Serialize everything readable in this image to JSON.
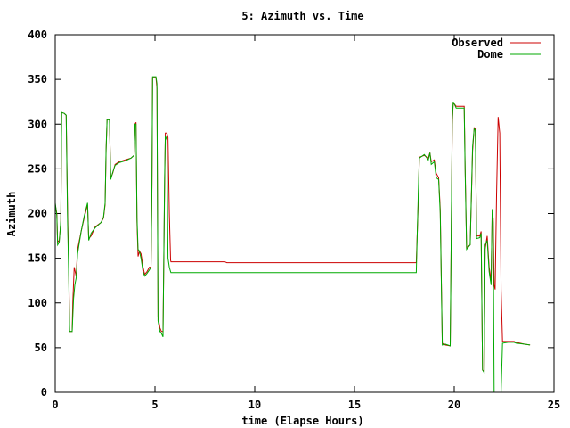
{
  "chart_data": {
    "type": "line",
    "title": "5: Azimuth vs. Time",
    "xlabel": "time (Elapse Hours)",
    "ylabel": "Azimuth",
    "xlim": [
      0,
      25
    ],
    "ylim": [
      0,
      400
    ],
    "xticks": [
      0,
      5,
      10,
      15,
      20,
      25
    ],
    "yticks": [
      0,
      50,
      100,
      150,
      200,
      250,
      300,
      350,
      400
    ],
    "grid": false,
    "legend_position": "top-right",
    "series": [
      {
        "name": "Observed",
        "color": "#cc0000",
        "points": [
          [
            0.0,
            210
          ],
          [
            0.08,
            200
          ],
          [
            0.12,
            168
          ],
          [
            0.2,
            170
          ],
          [
            0.28,
            190
          ],
          [
            0.32,
            313
          ],
          [
            0.45,
            312
          ],
          [
            0.55,
            310
          ],
          [
            0.62,
            200
          ],
          [
            0.68,
            140
          ],
          [
            0.72,
            68
          ],
          [
            0.85,
            68
          ],
          [
            0.88,
            100
          ],
          [
            0.95,
            140
          ],
          [
            1.0,
            135
          ],
          [
            1.05,
            130
          ],
          [
            1.12,
            160
          ],
          [
            1.3,
            180
          ],
          [
            1.45,
            195
          ],
          [
            1.62,
            210
          ],
          [
            1.68,
            172
          ],
          [
            1.8,
            175
          ],
          [
            2.0,
            185
          ],
          [
            2.3,
            190
          ],
          [
            2.42,
            195
          ],
          [
            2.5,
            210
          ],
          [
            2.55,
            270
          ],
          [
            2.6,
            305
          ],
          [
            2.72,
            305
          ],
          [
            2.78,
            240
          ],
          [
            2.88,
            245
          ],
          [
            3.0,
            255
          ],
          [
            3.2,
            258
          ],
          [
            3.5,
            260
          ],
          [
            3.8,
            262
          ],
          [
            3.95,
            265
          ],
          [
            4.0,
            300
          ],
          [
            4.05,
            302
          ],
          [
            4.1,
            190
          ],
          [
            4.15,
            152
          ],
          [
            4.22,
            158
          ],
          [
            4.3,
            155
          ],
          [
            4.4,
            140
          ],
          [
            4.48,
            132
          ],
          [
            4.6,
            135
          ],
          [
            4.72,
            140
          ],
          [
            4.8,
            140
          ],
          [
            4.85,
            230
          ],
          [
            4.88,
            352
          ],
          [
            5.05,
            352
          ],
          [
            5.1,
            340
          ],
          [
            5.15,
            85
          ],
          [
            5.25,
            72
          ],
          [
            5.32,
            68
          ],
          [
            5.4,
            68
          ],
          [
            5.48,
            230
          ],
          [
            5.52,
            290
          ],
          [
            5.6,
            290
          ],
          [
            5.65,
            285
          ],
          [
            5.72,
            200
          ],
          [
            5.78,
            148
          ],
          [
            5.8,
            146
          ],
          [
            8.5,
            146
          ],
          [
            8.6,
            145
          ],
          [
            18.0,
            145
          ],
          [
            18.1,
            145
          ],
          [
            18.2,
            215
          ],
          [
            18.25,
            263
          ],
          [
            18.5,
            265
          ],
          [
            18.7,
            262
          ],
          [
            18.78,
            268
          ],
          [
            18.85,
            258
          ],
          [
            19.0,
            260
          ],
          [
            19.1,
            245
          ],
          [
            19.22,
            240
          ],
          [
            19.3,
            205
          ],
          [
            19.4,
            55
          ],
          [
            19.55,
            53
          ],
          [
            19.8,
            52
          ],
          [
            19.9,
            300
          ],
          [
            19.95,
            324
          ],
          [
            20.1,
            320
          ],
          [
            20.3,
            320
          ],
          [
            20.5,
            320
          ],
          [
            20.55,
            250
          ],
          [
            20.62,
            162
          ],
          [
            20.8,
            165
          ],
          [
            20.92,
            270
          ],
          [
            21.0,
            296
          ],
          [
            21.06,
            295
          ],
          [
            21.12,
            175
          ],
          [
            21.28,
            175
          ],
          [
            21.35,
            180
          ],
          [
            21.42,
            25
          ],
          [
            21.5,
            24
          ],
          [
            21.55,
            160
          ],
          [
            21.65,
            175
          ],
          [
            21.75,
            140
          ],
          [
            21.85,
            125
          ],
          [
            21.9,
            200
          ],
          [
            21.95,
            195
          ],
          [
            22.0,
            120
          ],
          [
            22.05,
            115
          ],
          [
            22.12,
            220
          ],
          [
            22.2,
            308
          ],
          [
            22.28,
            290
          ],
          [
            22.35,
            115
          ],
          [
            22.42,
            57
          ],
          [
            22.7,
            57
          ],
          [
            22.9,
            57
          ],
          [
            23.0,
            57
          ],
          [
            23.1,
            56
          ],
          [
            23.5,
            54
          ],
          [
            23.8,
            53
          ]
        ]
      },
      {
        "name": "Dome",
        "color": "#00aa00",
        "points": [
          [
            0.0,
            212
          ],
          [
            0.08,
            198
          ],
          [
            0.12,
            165
          ],
          [
            0.2,
            168
          ],
          [
            0.28,
            192
          ],
          [
            0.32,
            313
          ],
          [
            0.45,
            312
          ],
          [
            0.55,
            310
          ],
          [
            0.62,
            190
          ],
          [
            0.68,
            128
          ],
          [
            0.72,
            68
          ],
          [
            0.85,
            68
          ],
          [
            0.92,
            105
          ],
          [
            0.98,
            120
          ],
          [
            1.05,
            128
          ],
          [
            1.12,
            155
          ],
          [
            1.3,
            180
          ],
          [
            1.45,
            197
          ],
          [
            1.62,
            212
          ],
          [
            1.68,
            170
          ],
          [
            1.8,
            178
          ],
          [
            2.0,
            184
          ],
          [
            2.3,
            190
          ],
          [
            2.42,
            196
          ],
          [
            2.5,
            212
          ],
          [
            2.55,
            272
          ],
          [
            2.6,
            305
          ],
          [
            2.72,
            305
          ],
          [
            2.78,
            238
          ],
          [
            2.88,
            246
          ],
          [
            3.0,
            254
          ],
          [
            3.2,
            257
          ],
          [
            3.5,
            259
          ],
          [
            3.8,
            262
          ],
          [
            3.95,
            265
          ],
          [
            4.0,
            300
          ],
          [
            4.05,
            300
          ],
          [
            4.1,
            195
          ],
          [
            4.15,
            160
          ],
          [
            4.22,
            158
          ],
          [
            4.3,
            150
          ],
          [
            4.4,
            135
          ],
          [
            4.48,
            130
          ],
          [
            4.6,
            133
          ],
          [
            4.72,
            137
          ],
          [
            4.8,
            140
          ],
          [
            4.85,
            235
          ],
          [
            4.88,
            353
          ],
          [
            5.05,
            353
          ],
          [
            5.1,
            345
          ],
          [
            5.15,
            80
          ],
          [
            5.25,
            68
          ],
          [
            5.32,
            66
          ],
          [
            5.4,
            62
          ],
          [
            5.48,
            240
          ],
          [
            5.52,
            287
          ],
          [
            5.6,
            282
          ],
          [
            5.65,
            150
          ],
          [
            5.72,
            140
          ],
          [
            5.78,
            135
          ],
          [
            5.8,
            134
          ],
          [
            18.0,
            134
          ],
          [
            18.1,
            134
          ],
          [
            18.2,
            225
          ],
          [
            18.25,
            262
          ],
          [
            18.5,
            266
          ],
          [
            18.7,
            260
          ],
          [
            18.78,
            268
          ],
          [
            18.85,
            255
          ],
          [
            19.0,
            258
          ],
          [
            19.1,
            240
          ],
          [
            19.22,
            238
          ],
          [
            19.3,
            200
          ],
          [
            19.4,
            53
          ],
          [
            19.55,
            54
          ],
          [
            19.8,
            52
          ],
          [
            19.9,
            305
          ],
          [
            19.95,
            325
          ],
          [
            20.1,
            318
          ],
          [
            20.3,
            318
          ],
          [
            20.5,
            318
          ],
          [
            20.55,
            245
          ],
          [
            20.62,
            160
          ],
          [
            20.8,
            165
          ],
          [
            20.92,
            275
          ],
          [
            21.0,
            295
          ],
          [
            21.06,
            293
          ],
          [
            21.12,
            172
          ],
          [
            21.28,
            173
          ],
          [
            21.35,
            178
          ],
          [
            21.42,
            25
          ],
          [
            21.5,
            22
          ],
          [
            21.55,
            165
          ],
          [
            21.65,
            170
          ],
          [
            21.75,
            135
          ],
          [
            21.85,
            120
          ],
          [
            21.9,
            205
          ],
          [
            21.95,
            190
          ],
          [
            22.0,
            0
          ],
          [
            22.1,
            0
          ],
          [
            22.15,
            0
          ],
          [
            22.2,
            0
          ],
          [
            22.28,
            0
          ],
          [
            22.35,
            0
          ],
          [
            22.42,
            55
          ],
          [
            22.7,
            56
          ],
          [
            22.9,
            56
          ],
          [
            23.0,
            56
          ],
          [
            23.1,
            55
          ],
          [
            23.5,
            54
          ],
          [
            23.8,
            53
          ]
        ]
      }
    ]
  }
}
